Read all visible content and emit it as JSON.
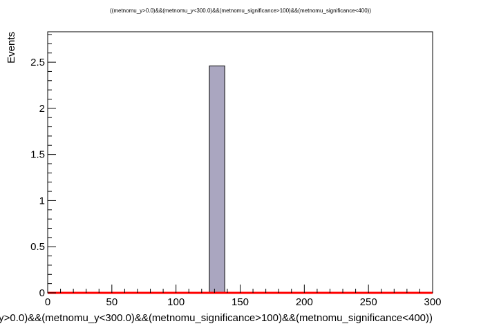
{
  "chart_data": {
    "type": "bar",
    "title": "((metnomu_y>0.0)&&(metnomu_y<300.0)&&(metnomu_significance>100)&&(metnomu_significance<400))",
    "xlabel": "y>0.0)&&(metnomu_y<300.0)&&(metnomu_significance>100)&&(metnomu_significance<400))",
    "ylabel": "Events",
    "xlim": [
      0,
      300
    ],
    "ylim": [
      0,
      2.83
    ],
    "x_ticks": [
      "0",
      "50",
      "100",
      "150",
      "200",
      "250",
      "300"
    ],
    "y_ticks": [
      "0",
      "0.5",
      "1",
      "1.5",
      "2",
      "2.5"
    ],
    "bins": [
      {
        "x_low": 126,
        "x_high": 138,
        "value": 2.46
      }
    ],
    "baseline": 0,
    "bar_color": "#aaa6c0",
    "baseline_color": "#ff0000",
    "grid": false
  }
}
